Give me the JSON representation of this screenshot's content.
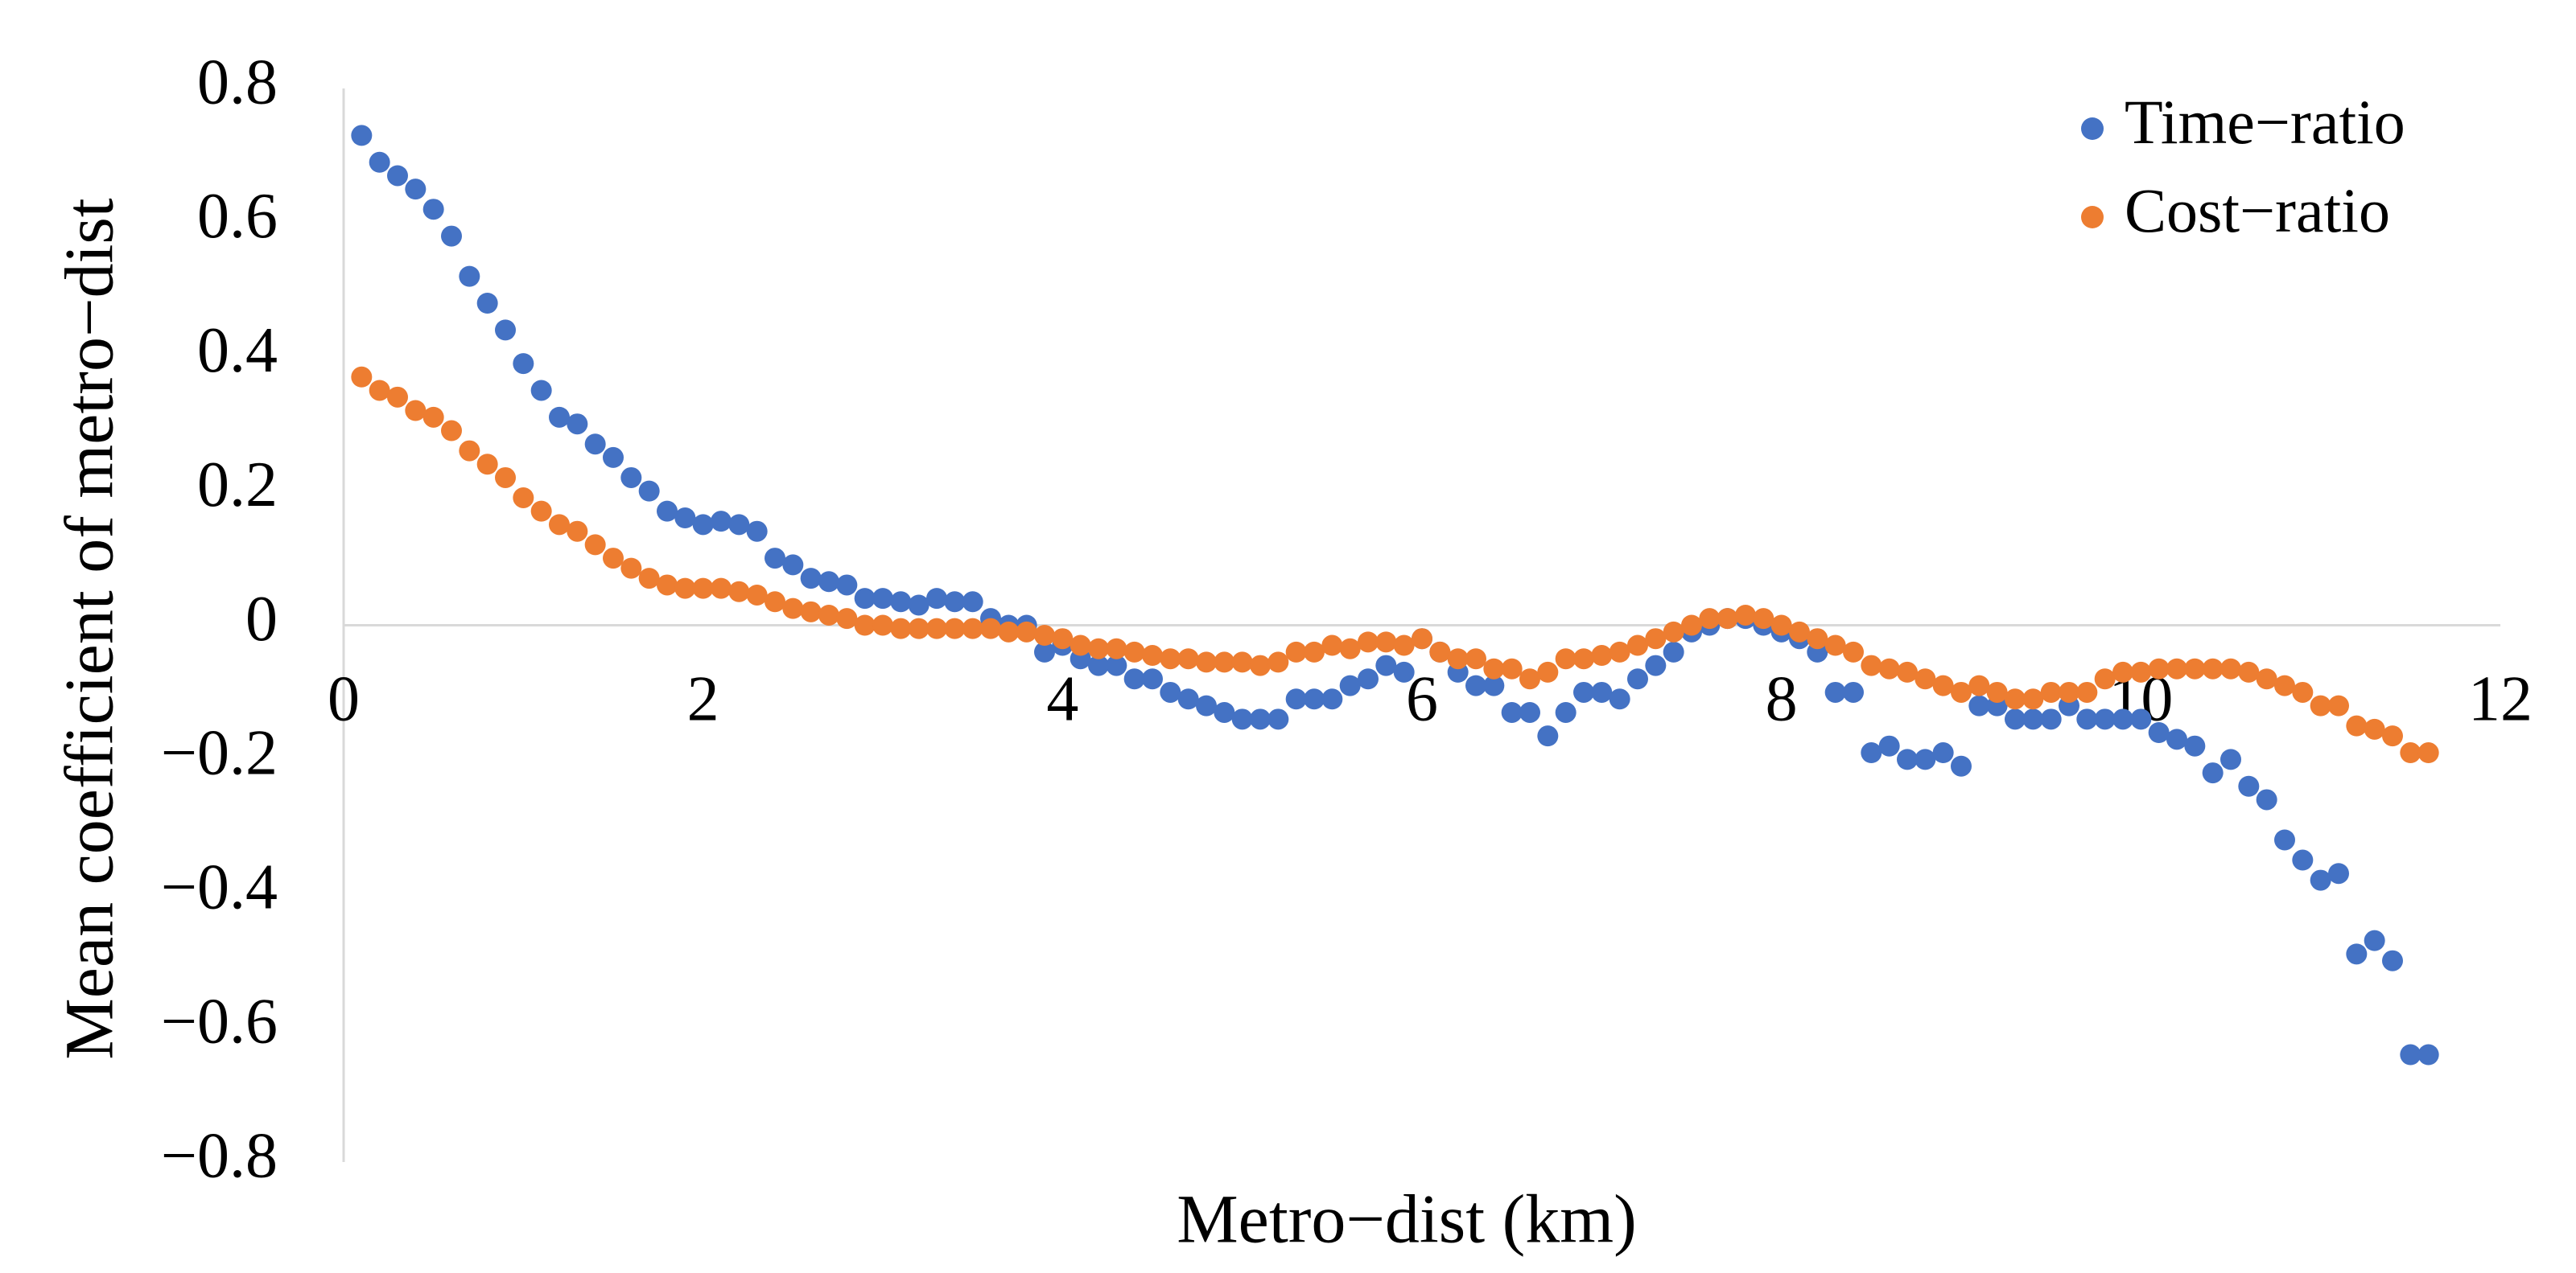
{
  "chart_data": {
    "type": "scatter",
    "title": "",
    "xlabel": "Metro−dist (km)",
    "ylabel": "Mean coefficient of metro−dist",
    "xlim": [
      0,
      12
    ],
    "ylim": [
      -0.8,
      0.8
    ],
    "x_ticks": [
      "0",
      "2",
      "4",
      "6",
      "8",
      "10",
      "12"
    ],
    "y_ticks": [
      "0.8",
      "0.6",
      "0.4",
      "0.2",
      "0",
      "−0.2",
      "−0.4",
      "−0.6",
      "−0.8"
    ],
    "grid": false,
    "legend_position": "top-right",
    "series": [
      {
        "name": "Time−ratio",
        "color": "#4472C4",
        "x": [
          0.1,
          0.2,
          0.3,
          0.4,
          0.5,
          0.6,
          0.7,
          0.8,
          0.9,
          1.0,
          1.1,
          1.2,
          1.3,
          1.4,
          1.5,
          1.6,
          1.7,
          1.8,
          1.9,
          2.0,
          2.1,
          2.2,
          2.3,
          2.4,
          2.5,
          2.6,
          2.7,
          2.8,
          2.9,
          3.0,
          3.1,
          3.2,
          3.3,
          3.4,
          3.5,
          3.6,
          3.7,
          3.8,
          3.9,
          4.0,
          4.1,
          4.2,
          4.3,
          4.4,
          4.5,
          4.6,
          4.7,
          4.8,
          4.9,
          5.0,
          5.1,
          5.2,
          5.3,
          5.4,
          5.5,
          5.6,
          5.7,
          5.8,
          5.9,
          6.0,
          6.1,
          6.2,
          6.3,
          6.4,
          6.5,
          6.6,
          6.7,
          6.8,
          6.9,
          7.0,
          7.1,
          7.2,
          7.3,
          7.4,
          7.5,
          7.6,
          7.7,
          7.8,
          7.9,
          8.0,
          8.1,
          8.2,
          8.3,
          8.4,
          8.5,
          8.6,
          8.7,
          8.8,
          8.9,
          9.0,
          9.1,
          9.2,
          9.3,
          9.4,
          9.5,
          9.6,
          9.7,
          9.8,
          9.9,
          10.0,
          10.1,
          10.2,
          10.3,
          10.4,
          10.5,
          10.6,
          10.7,
          10.8,
          10.9,
          11.0,
          11.1,
          11.2,
          11.3,
          11.4,
          11.5,
          11.6
        ],
        "y": [
          0.73,
          0.69,
          0.67,
          0.65,
          0.62,
          0.58,
          0.52,
          0.48,
          0.44,
          0.39,
          0.35,
          0.31,
          0.3,
          0.27,
          0.25,
          0.22,
          0.2,
          0.17,
          0.16,
          0.15,
          0.155,
          0.15,
          0.14,
          0.1,
          0.09,
          0.07,
          0.065,
          0.06,
          0.04,
          0.04,
          0.035,
          0.03,
          0.04,
          0.035,
          0.035,
          0.01,
          0.0,
          0.0,
          -0.04,
          -0.03,
          -0.05,
          -0.06,
          -0.06,
          -0.08,
          -0.08,
          -0.1,
          -0.11,
          -0.12,
          -0.13,
          -0.14,
          -0.14,
          -0.14,
          -0.11,
          -0.11,
          -0.11,
          -0.09,
          -0.08,
          -0.06,
          -0.07,
          -0.02,
          -0.04,
          -0.07,
          -0.09,
          -0.09,
          -0.13,
          -0.13,
          -0.165,
          -0.13,
          -0.1,
          -0.1,
          -0.11,
          -0.08,
          -0.06,
          -0.04,
          -0.01,
          0.0,
          0.01,
          0.01,
          0.0,
          -0.01,
          -0.02,
          -0.04,
          -0.1,
          -0.1,
          -0.19,
          -0.18,
          -0.2,
          -0.2,
          -0.19,
          -0.21,
          -0.12,
          -0.12,
          -0.14,
          -0.14,
          -0.14,
          -0.12,
          -0.14,
          -0.14,
          -0.14,
          -0.14,
          -0.16,
          -0.17,
          -0.18,
          -0.22,
          -0.2,
          -0.24,
          -0.26,
          -0.32,
          -0.35,
          -0.38,
          -0.37,
          -0.49,
          -0.47,
          -0.5,
          -0.64,
          -0.64
        ]
      },
      {
        "name": "Cost−ratio",
        "color": "#ED7D31",
        "x": [
          0.1,
          0.2,
          0.3,
          0.4,
          0.5,
          0.6,
          0.7,
          0.8,
          0.9,
          1.0,
          1.1,
          1.2,
          1.3,
          1.4,
          1.5,
          1.6,
          1.7,
          1.8,
          1.9,
          2.0,
          2.1,
          2.2,
          2.3,
          2.4,
          2.5,
          2.6,
          2.7,
          2.8,
          2.9,
          3.0,
          3.1,
          3.2,
          3.3,
          3.4,
          3.5,
          3.6,
          3.7,
          3.8,
          3.9,
          4.0,
          4.1,
          4.2,
          4.3,
          4.4,
          4.5,
          4.6,
          4.7,
          4.8,
          4.9,
          5.0,
          5.1,
          5.2,
          5.3,
          5.4,
          5.5,
          5.6,
          5.7,
          5.8,
          5.9,
          6.0,
          6.1,
          6.2,
          6.3,
          6.4,
          6.5,
          6.6,
          6.7,
          6.8,
          6.9,
          7.0,
          7.1,
          7.2,
          7.3,
          7.4,
          7.5,
          7.6,
          7.7,
          7.8,
          7.9,
          8.0,
          8.1,
          8.2,
          8.3,
          8.4,
          8.5,
          8.6,
          8.7,
          8.8,
          8.9,
          9.0,
          9.1,
          9.2,
          9.3,
          9.4,
          9.5,
          9.6,
          9.7,
          9.8,
          9.9,
          10.0,
          10.1,
          10.2,
          10.3,
          10.4,
          10.5,
          10.6,
          10.7,
          10.8,
          10.9,
          11.0,
          11.1,
          11.2,
          11.3,
          11.4,
          11.5,
          11.6
        ],
        "y": [
          0.37,
          0.35,
          0.34,
          0.32,
          0.31,
          0.29,
          0.26,
          0.24,
          0.22,
          0.19,
          0.17,
          0.15,
          0.14,
          0.12,
          0.1,
          0.085,
          0.07,
          0.06,
          0.055,
          0.055,
          0.055,
          0.05,
          0.045,
          0.035,
          0.025,
          0.02,
          0.015,
          0.01,
          0.0,
          0.0,
          -0.005,
          -0.005,
          -0.005,
          -0.005,
          -0.005,
          -0.005,
          -0.01,
          -0.01,
          -0.015,
          -0.02,
          -0.03,
          -0.035,
          -0.035,
          -0.04,
          -0.045,
          -0.05,
          -0.05,
          -0.055,
          -0.055,
          -0.055,
          -0.06,
          -0.055,
          -0.04,
          -0.04,
          -0.03,
          -0.035,
          -0.025,
          -0.025,
          -0.03,
          -0.02,
          -0.04,
          -0.05,
          -0.05,
          -0.065,
          -0.065,
          -0.08,
          -0.07,
          -0.05,
          -0.05,
          -0.045,
          -0.04,
          -0.03,
          -0.02,
          -0.01,
          0.0,
          0.01,
          0.01,
          0.015,
          0.01,
          0.0,
          -0.01,
          -0.02,
          -0.03,
          -0.04,
          -0.06,
          -0.065,
          -0.07,
          -0.08,
          -0.09,
          -0.1,
          -0.09,
          -0.1,
          -0.11,
          -0.11,
          -0.1,
          -0.1,
          -0.1,
          -0.08,
          -0.07,
          -0.07,
          -0.065,
          -0.065,
          -0.065,
          -0.065,
          -0.065,
          -0.07,
          -0.08,
          -0.09,
          -0.1,
          -0.12,
          -0.12,
          -0.15,
          -0.155,
          -0.165,
          -0.19,
          -0.19
        ]
      }
    ]
  }
}
